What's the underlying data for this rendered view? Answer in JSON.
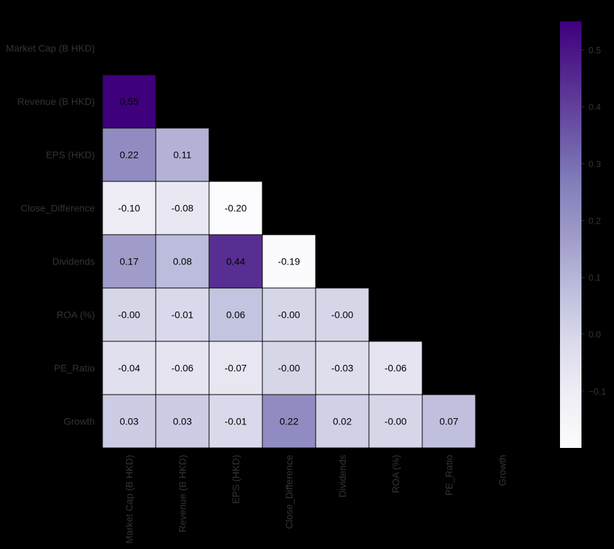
{
  "chart_data": {
    "type": "heatmap",
    "variables": [
      "Market Cap (B HKD)",
      "Revenue (B HKD)",
      "EPS (HKD)",
      "Close_Difference",
      "Dividends",
      "ROA (%)",
      "PE_Ratio",
      "Growth"
    ],
    "mask": "upper-triangle-including-diagonal",
    "cells": [
      {
        "row": 1,
        "col": 0,
        "value": 0.55,
        "label": "0.55"
      },
      {
        "row": 2,
        "col": 0,
        "value": 0.22,
        "label": "0.22"
      },
      {
        "row": 2,
        "col": 1,
        "value": 0.11,
        "label": "0.11"
      },
      {
        "row": 3,
        "col": 0,
        "value": -0.1,
        "label": "-0.10"
      },
      {
        "row": 3,
        "col": 1,
        "value": -0.08,
        "label": "-0.08"
      },
      {
        "row": 3,
        "col": 2,
        "value": -0.2,
        "label": "-0.20"
      },
      {
        "row": 4,
        "col": 0,
        "value": 0.17,
        "label": "0.17"
      },
      {
        "row": 4,
        "col": 1,
        "value": 0.08,
        "label": "0.08"
      },
      {
        "row": 4,
        "col": 2,
        "value": 0.44,
        "label": "0.44"
      },
      {
        "row": 4,
        "col": 3,
        "value": -0.19,
        "label": "-0.19"
      },
      {
        "row": 5,
        "col": 0,
        "value": -0.0,
        "label": "-0.00"
      },
      {
        "row": 5,
        "col": 1,
        "value": -0.01,
        "label": "-0.01"
      },
      {
        "row": 5,
        "col": 2,
        "value": 0.06,
        "label": "0.06"
      },
      {
        "row": 5,
        "col": 3,
        "value": -0.0,
        "label": "-0.00"
      },
      {
        "row": 5,
        "col": 4,
        "value": -0.0,
        "label": "-0.00"
      },
      {
        "row": 6,
        "col": 0,
        "value": -0.04,
        "label": "-0.04"
      },
      {
        "row": 6,
        "col": 1,
        "value": -0.06,
        "label": "-0.06"
      },
      {
        "row": 6,
        "col": 2,
        "value": -0.07,
        "label": "-0.07"
      },
      {
        "row": 6,
        "col": 3,
        "value": -0.0,
        "label": "-0.00"
      },
      {
        "row": 6,
        "col": 4,
        "value": -0.03,
        "label": "-0.03"
      },
      {
        "row": 6,
        "col": 5,
        "value": -0.06,
        "label": "-0.06"
      },
      {
        "row": 7,
        "col": 0,
        "value": 0.03,
        "label": "0.03"
      },
      {
        "row": 7,
        "col": 1,
        "value": 0.03,
        "label": "0.03"
      },
      {
        "row": 7,
        "col": 2,
        "value": -0.01,
        "label": "-0.01"
      },
      {
        "row": 7,
        "col": 3,
        "value": 0.22,
        "label": "0.22"
      },
      {
        "row": 7,
        "col": 4,
        "value": 0.02,
        "label": "0.02"
      },
      {
        "row": 7,
        "col": 5,
        "value": -0.0,
        "label": "-0.00"
      },
      {
        "row": 7,
        "col": 6,
        "value": 0.07,
        "label": "0.07"
      }
    ],
    "colormap": "Purples",
    "colormap_stops": [
      "#fcfbfd",
      "#efedf5",
      "#dadaeb",
      "#bcbddc",
      "#9e9ac8",
      "#807dba",
      "#6a51a3",
      "#54278f",
      "#3f007d"
    ],
    "vmin": -0.2,
    "vmax": 0.55,
    "colorbar": {
      "ticks": [
        -0.1,
        0.0,
        0.1,
        0.2,
        0.3,
        0.4,
        0.5
      ],
      "tick_labels": [
        "−0.1",
        "0.0",
        "0.1",
        "0.2",
        "0.3",
        "0.4",
        "0.5"
      ]
    },
    "background": "#000000",
    "cell_border": "#000000",
    "title": "",
    "xlabel": "",
    "ylabel": ""
  }
}
